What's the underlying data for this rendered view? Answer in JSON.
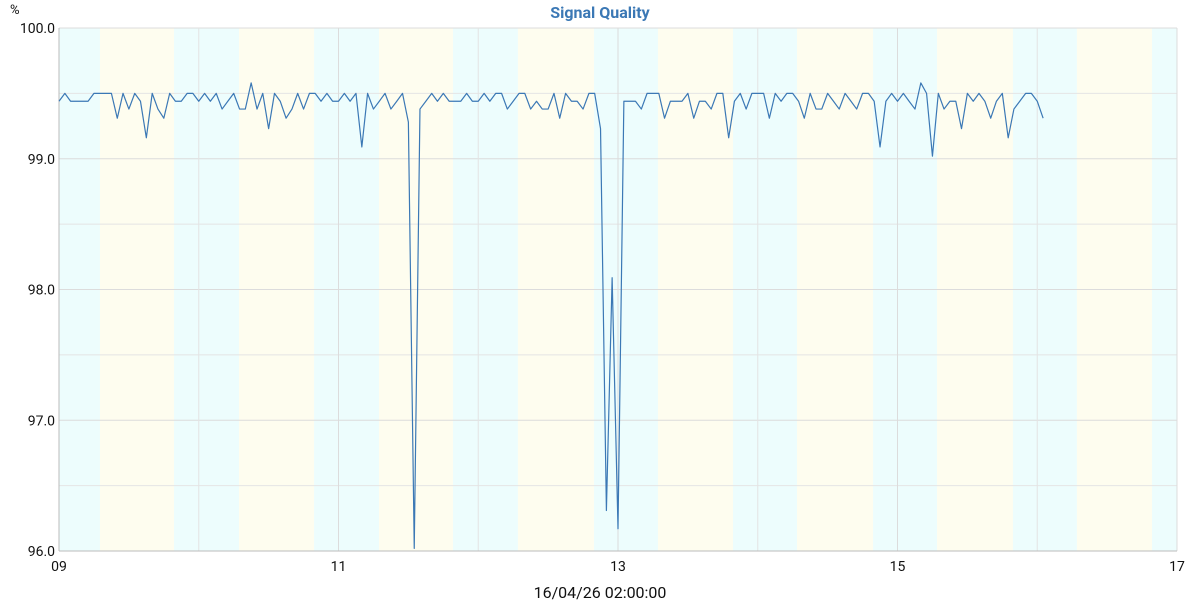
{
  "chart_data": {
    "type": "line",
    "title": "Signal Quality",
    "y_unit": "%",
    "xlabel": "16/04/26 02:00:00",
    "color": "#3b78b5",
    "grid": true,
    "xlim": [
      9,
      17
    ],
    "xticks": [
      {
        "value": 9,
        "label": "09"
      },
      11,
      13,
      15,
      17
    ],
    "minor_xticks": [
      10,
      12,
      14,
      16
    ],
    "ylim": [
      96,
      100
    ],
    "yticks": [
      {
        "value": 96,
        "label": "96.0"
      },
      {
        "value": 97,
        "label": "97.0"
      },
      {
        "value": 98,
        "label": "98.0"
      },
      {
        "value": 99,
        "label": "99.0"
      },
      {
        "value": 100,
        "label": "100.0"
      }
    ],
    "minor_yticks": [
      96.5,
      97.5,
      98.5,
      99.5
    ],
    "bands": {
      "colors": [
        "#edfdfd",
        "#fefdef"
      ],
      "edges": [
        9,
        9.293,
        9.823,
        10.288,
        10.825,
        11.29,
        11.819,
        12.284,
        12.828,
        13.286,
        13.823,
        14.281,
        14.825,
        15.283,
        15.826,
        16.284,
        16.821,
        17
      ]
    },
    "x": [
      9,
      9.042,
      9.083,
      9.125,
      9.167,
      9.208,
      9.25,
      9.292,
      9.333,
      9.375,
      9.417,
      9.458,
      9.5,
      9.542,
      9.583,
      9.625,
      9.667,
      9.708,
      9.75,
      9.792,
      9.833,
      9.875,
      9.917,
      9.958,
      10,
      10.042,
      10.083,
      10.125,
      10.167,
      10.208,
      10.25,
      10.292,
      10.333,
      10.375,
      10.417,
      10.458,
      10.5,
      10.542,
      10.583,
      10.625,
      10.667,
      10.708,
      10.75,
      10.792,
      10.833,
      10.875,
      10.917,
      10.958,
      11,
      11.042,
      11.083,
      11.125,
      11.167,
      11.208,
      11.25,
      11.292,
      11.333,
      11.375,
      11.417,
      11.458,
      11.5,
      11.542,
      11.583,
      11.625,
      11.667,
      11.708,
      11.75,
      11.792,
      11.833,
      11.875,
      11.917,
      11.958,
      12,
      12.042,
      12.083,
      12.125,
      12.167,
      12.208,
      12.25,
      12.292,
      12.333,
      12.375,
      12.417,
      12.458,
      12.5,
      12.542,
      12.583,
      12.625,
      12.667,
      12.708,
      12.75,
      12.792,
      12.833,
      12.875,
      12.917,
      12.958,
      13,
      13.042,
      13.083,
      13.125,
      13.167,
      13.208,
      13.25,
      13.292,
      13.333,
      13.375,
      13.417,
      13.458,
      13.5,
      13.542,
      13.583,
      13.625,
      13.667,
      13.708,
      13.75,
      13.792,
      13.833,
      13.875,
      13.917,
      13.958,
      14,
      14.042,
      14.083,
      14.125,
      14.167,
      14.208,
      14.25,
      14.292,
      14.333,
      14.375,
      14.417,
      14.458,
      14.5,
      14.542,
      14.583,
      14.625,
      14.667,
      14.708,
      14.75,
      14.792,
      14.833,
      14.875,
      14.917,
      14.958,
      15,
      15.042,
      15.083,
      15.125,
      15.167,
      15.208,
      15.25,
      15.292,
      15.333,
      15.375,
      15.417,
      15.458,
      15.5,
      15.542,
      15.583,
      15.625,
      15.667,
      15.708,
      15.75,
      15.792,
      15.833,
      15.875,
      15.917,
      15.958,
      16,
      16.042
    ],
    "values": [
      99.44,
      99.5,
      99.44,
      99.44,
      99.44,
      99.44,
      99.5,
      99.5,
      99.5,
      99.5,
      99.31,
      99.5,
      99.38,
      99.5,
      99.44,
      99.16,
      99.5,
      99.38,
      99.31,
      99.5,
      99.44,
      99.44,
      99.5,
      99.5,
      99.44,
      99.5,
      99.44,
      99.5,
      99.38,
      99.44,
      99.5,
      99.38,
      99.38,
      99.58,
      99.38,
      99.5,
      99.23,
      99.5,
      99.44,
      99.31,
      99.38,
      99.5,
      99.38,
      99.5,
      99.5,
      99.44,
      99.5,
      99.44,
      99.44,
      99.5,
      99.44,
      99.5,
      99.09,
      99.5,
      99.38,
      99.44,
      99.5,
      99.38,
      99.44,
      99.5,
      99.28,
      96.02,
      99.38,
      99.44,
      99.5,
      99.44,
      99.5,
      99.44,
      99.44,
      99.44,
      99.5,
      99.44,
      99.44,
      99.5,
      99.44,
      99.5,
      99.5,
      99.38,
      99.44,
      99.5,
      99.5,
      99.38,
      99.44,
      99.38,
      99.38,
      99.5,
      99.31,
      99.5,
      99.44,
      99.44,
      99.38,
      99.5,
      99.5,
      99.23,
      96.31,
      98.09,
      96.17,
      99.44,
      99.44,
      99.44,
      99.38,
      99.5,
      99.5,
      99.5,
      99.31,
      99.44,
      99.44,
      99.44,
      99.5,
      99.31,
      99.44,
      99.44,
      99.38,
      99.5,
      99.5,
      99.16,
      99.44,
      99.5,
      99.38,
      99.5,
      99.5,
      99.5,
      99.31,
      99.5,
      99.44,
      99.5,
      99.5,
      99.44,
      99.31,
      99.5,
      99.38,
      99.38,
      99.5,
      99.44,
      99.38,
      99.5,
      99.44,
      99.38,
      99.5,
      99.5,
      99.44,
      99.09,
      99.44,
      99.5,
      99.44,
      99.5,
      99.44,
      99.38,
      99.58,
      99.5,
      99.02,
      99.5,
      99.38,
      99.44,
      99.44,
      99.23,
      99.5,
      99.44,
      99.5,
      99.44,
      99.31,
      99.44,
      99.5,
      99.16,
      99.38,
      99.44,
      99.5,
      99.5,
      99.44,
      99.31
    ]
  }
}
